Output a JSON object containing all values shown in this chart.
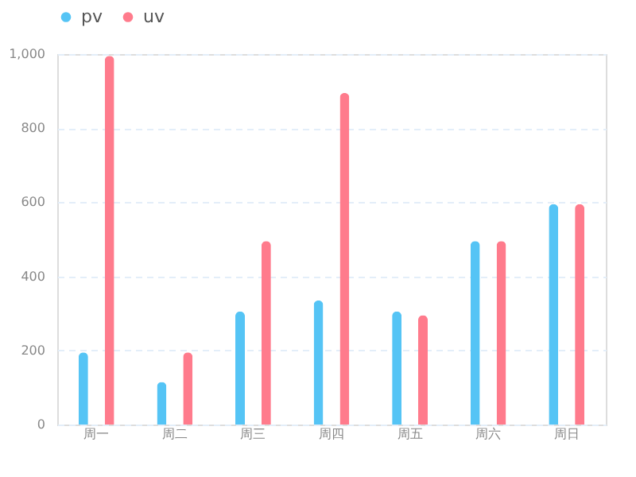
{
  "chart_data": {
    "type": "bar",
    "categories": [
      "周一",
      "周二",
      "周三",
      "周四",
      "周五",
      "周六",
      "周日"
    ],
    "series": [
      {
        "name": "pv",
        "color": "#55c4f5",
        "values": [
          195,
          115,
          305,
          335,
          305,
          495,
          595
        ]
      },
      {
        "name": "uv",
        "color": "#ff7b8c",
        "values": [
          995,
          195,
          495,
          895,
          295,
          495,
          595
        ]
      }
    ],
    "ylim": [
      0,
      1000
    ],
    "yticks": [
      0,
      200,
      400,
      600,
      800,
      {
        "value": 1000,
        "label": "1,000"
      }
    ],
    "grid": "y",
    "legend": "top"
  }
}
